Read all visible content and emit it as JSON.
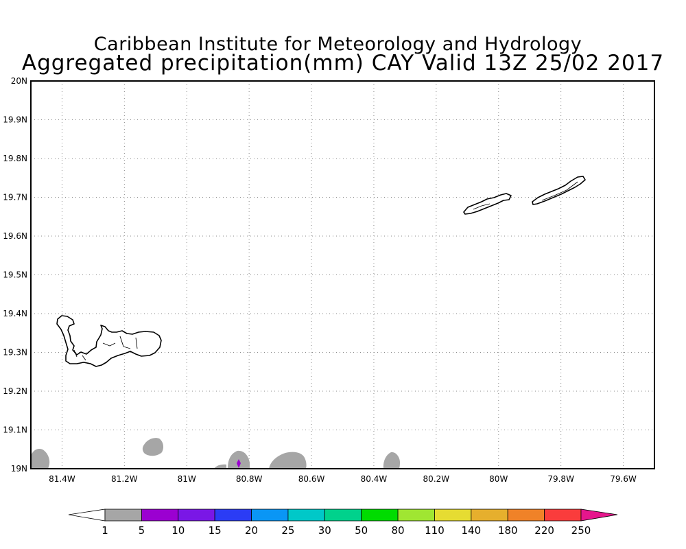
{
  "header": {
    "line1": "Caribbean Institute for Meteorology and Hydrology",
    "line2": "Aggregated precipitation(mm) CAY Valid 13Z 25/02 2017"
  },
  "map": {
    "lon_range": [
      -81.5,
      -79.5
    ],
    "lat_range": [
      19.0,
      20.0
    ],
    "grid": "dotted",
    "lon_ticks": [
      {
        "value": -81.4,
        "label": "81.4W"
      },
      {
        "value": -81.2,
        "label": "81.2W"
      },
      {
        "value": -81.0,
        "label": "81W"
      },
      {
        "value": -80.8,
        "label": "80.8W"
      },
      {
        "value": -80.6,
        "label": "80.6W"
      },
      {
        "value": -80.4,
        "label": "80.4W"
      },
      {
        "value": -80.2,
        "label": "80.2W"
      },
      {
        "value": -80.0,
        "label": "80W"
      },
      {
        "value": -79.8,
        "label": "79.8W"
      },
      {
        "value": -79.6,
        "label": "79.6W"
      }
    ],
    "lat_ticks": [
      {
        "value": 20.0,
        "label": "20N"
      },
      {
        "value": 19.9,
        "label": "19.9N"
      },
      {
        "value": 19.8,
        "label": "19.8N"
      },
      {
        "value": 19.7,
        "label": "19.7N"
      },
      {
        "value": 19.6,
        "label": "19.6N"
      },
      {
        "value": 19.5,
        "label": "19.5N"
      },
      {
        "value": 19.4,
        "label": "19.4N"
      },
      {
        "value": 19.3,
        "label": "19.3N"
      },
      {
        "value": 19.2,
        "label": "19.2N"
      },
      {
        "value": 19.1,
        "label": "19.1N"
      },
      {
        "value": 19.0,
        "label": "19N"
      }
    ]
  },
  "colorbar": {
    "under_color": "#ffffff",
    "over_color": "#e6168c",
    "bins": [
      {
        "color": "#a6a6a6"
      },
      {
        "color": "#9b00d1"
      },
      {
        "color": "#7a17e6"
      },
      {
        "color": "#2b3cf5"
      },
      {
        "color": "#0a96f5"
      },
      {
        "color": "#00c8c8"
      },
      {
        "color": "#00d28c"
      },
      {
        "color": "#00dc00"
      },
      {
        "color": "#a0e632"
      },
      {
        "color": "#e6dc32"
      },
      {
        "color": "#e6af2d"
      },
      {
        "color": "#f08228"
      },
      {
        "color": "#fa3c3c"
      }
    ],
    "labels": [
      "1",
      "5",
      "10",
      "15",
      "20",
      "25",
      "30",
      "50",
      "80",
      "110",
      "140",
      "180",
      "220",
      "250"
    ]
  }
}
